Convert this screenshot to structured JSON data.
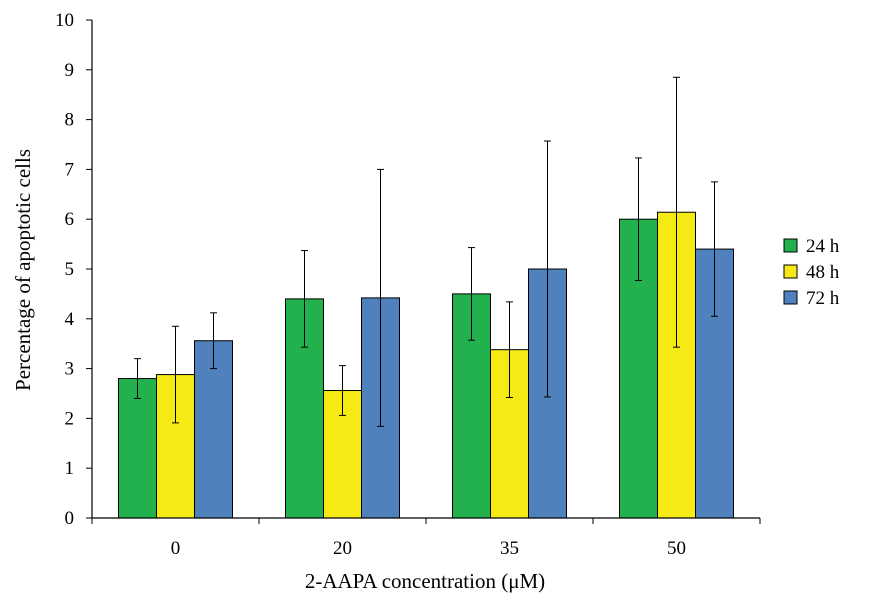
{
  "chart_data": {
    "type": "bar",
    "title": "",
    "xlabel": "2-AAPA concentration (μM)",
    "ylabel": "Percentage of apoptotic cells",
    "ylim": [
      0,
      10
    ],
    "yticks": [
      "0",
      "1",
      "2",
      "3",
      "4",
      "5",
      "6",
      "7",
      "8",
      "9",
      "10"
    ],
    "categories": [
      "0",
      "20",
      "35",
      "50"
    ],
    "grid": false,
    "legend_position": "right",
    "series": [
      {
        "name": "24 h",
        "color": "#22b14c",
        "values": [
          2.8,
          4.4,
          4.5,
          6.0
        ],
        "errors": [
          0.4,
          0.97,
          0.93,
          1.23
        ]
      },
      {
        "name": "48 h",
        "color": "#f5ea14",
        "values": [
          2.88,
          2.56,
          3.38,
          6.14
        ],
        "errors": [
          0.97,
          0.5,
          0.96,
          2.71
        ]
      },
      {
        "name": "72 h",
        "color": "#4f81bd",
        "values": [
          3.56,
          4.42,
          5.0,
          5.4
        ],
        "errors": [
          0.56,
          2.58,
          2.57,
          1.35
        ]
      }
    ]
  }
}
